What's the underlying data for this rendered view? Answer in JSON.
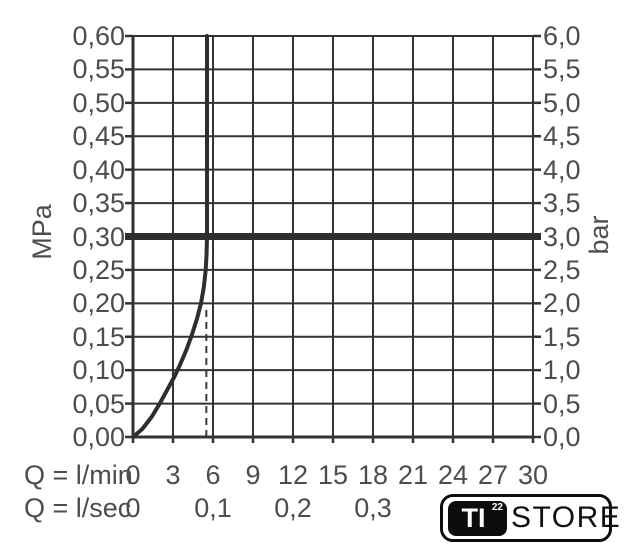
{
  "chart_data": {
    "type": "line",
    "grid": true,
    "legend": "none",
    "y_axis_left": {
      "label": "MPa",
      "min": 0,
      "max": 0.6,
      "step": 0.05,
      "tick_labels": [
        "0,00",
        "0,05",
        "0,10",
        "0,15",
        "0,20",
        "0,25",
        "0,30",
        "0,35",
        "0,40",
        "0,45",
        "0,50",
        "0,55",
        "0,60"
      ]
    },
    "y_axis_right": {
      "label": "bar",
      "min": 0,
      "max": 6,
      "step": 0.5,
      "tick_labels": [
        "0,0",
        "0,5",
        "1,0",
        "1,5",
        "2,0",
        "2,5",
        "3,0",
        "3,5",
        "4,0",
        "4,5",
        "5,0",
        "5,5",
        "6,0"
      ]
    },
    "x_axis_lmin": {
      "label": "Q = l/min",
      "min": 0,
      "max": 30,
      "step": 3,
      "tick_labels": [
        "0",
        "3",
        "6",
        "9",
        "12",
        "15",
        "18",
        "21",
        "24",
        "27",
        "30"
      ]
    },
    "x_axis_lsec": {
      "label": "Q = l/sec",
      "ticks": [
        {
          "label": "0",
          "q_lmin": 0
        },
        {
          "label": "0,1",
          "q_lmin": 6
        },
        {
          "label": "0,2",
          "q_lmin": 12
        },
        {
          "label": "0,3",
          "q_lmin": 18
        }
      ]
    },
    "reference_line": {
      "pressure_mpa": 0.3,
      "pressure_bar": 3.0
    },
    "series": [
      {
        "name": "flow-pressure-curve",
        "points_q_lmin_p_mpa": [
          [
            0,
            0
          ],
          [
            0.7,
            0.012
          ],
          [
            1.4,
            0.03
          ],
          [
            2.0,
            0.05
          ],
          [
            2.6,
            0.072
          ],
          [
            3.1,
            0.09
          ],
          [
            3.5,
            0.107
          ],
          [
            4.0,
            0.13
          ],
          [
            4.4,
            0.152
          ],
          [
            4.8,
            0.177
          ],
          [
            5.1,
            0.2
          ],
          [
            5.32,
            0.225
          ],
          [
            5.45,
            0.25
          ],
          [
            5.52,
            0.275
          ],
          [
            5.55,
            0.3
          ],
          [
            5.55,
            0.6
          ]
        ]
      }
    ],
    "dashed_guide": {
      "q_lmin": 5.5,
      "from_p_mpa": 0,
      "to_p_mpa": 0.19
    },
    "colors": {
      "line": "#2e2e2e",
      "grid": "#333333",
      "text": "#4d4d4d"
    }
  },
  "logo": {
    "badge_text": "TI",
    "badge_superscript": "22",
    "store_text": "STORE"
  }
}
